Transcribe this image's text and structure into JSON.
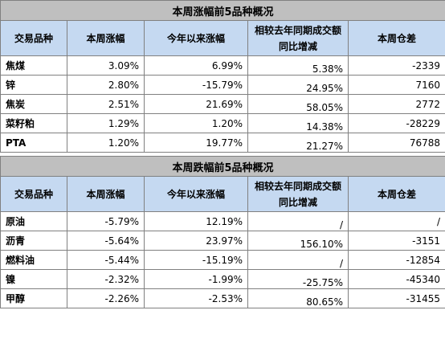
{
  "headers": [
    "交易品种",
    "本周涨幅",
    "今年以来涨幅",
    "相较去年同期成交额同比增减",
    "本周仓差"
  ],
  "up": {
    "title": "本周涨幅前5品种概况",
    "rows": [
      [
        "焦煤",
        "3.09%",
        "6.99%",
        "5.38%",
        "-2339"
      ],
      [
        "锌",
        "2.80%",
        "-15.79%",
        "24.95%",
        "7160"
      ],
      [
        "焦炭",
        "2.51%",
        "21.69%",
        "58.05%",
        "2772"
      ],
      [
        "菜籽粕",
        "1.29%",
        "1.20%",
        "14.38%",
        "-28229"
      ],
      [
        "PTA",
        "1.20%",
        "19.77%",
        "21.27%",
        "76788"
      ]
    ]
  },
  "down": {
    "title": "本周跌幅前5品种概况",
    "rows": [
      [
        "原油",
        "-5.79%",
        "12.19%",
        "/",
        "/"
      ],
      [
        "沥青",
        "-5.64%",
        "23.97%",
        "156.10%",
        "-3151"
      ],
      [
        "燃料油",
        "-5.44%",
        "-15.19%",
        "/",
        "-12854"
      ],
      [
        "镍",
        "-2.32%",
        "-1.99%",
        "-25.75%",
        "-45340"
      ],
      [
        "甲醇",
        "-2.26%",
        "-2.53%",
        "80.65%",
        "-31455"
      ]
    ]
  }
}
